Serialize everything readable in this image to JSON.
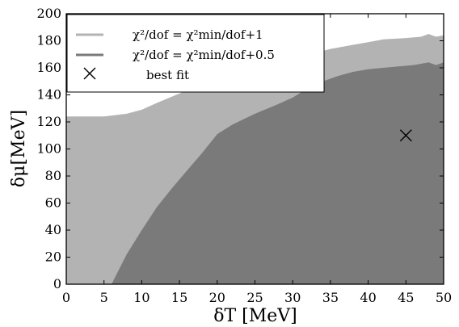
{
  "chart_data": {
    "type": "area",
    "xlabel": "δT [MeV]",
    "ylabel": "δμ[MeV]",
    "xlim": [
      0,
      50
    ],
    "ylim": [
      0,
      200
    ],
    "xticks": [
      0,
      5,
      10,
      15,
      20,
      25,
      30,
      35,
      40,
      45,
      50
    ],
    "yticks": [
      0,
      20,
      40,
      60,
      80,
      100,
      120,
      140,
      160,
      180,
      200
    ],
    "grid": false,
    "legend_position": "top-left",
    "series": [
      {
        "name": "χ²/dof = χ²min/dof+1",
        "color": "#b3b3b3",
        "boundary": {
          "x": [
            0,
            5,
            8,
            10,
            12,
            15,
            18,
            20,
            22,
            25,
            28,
            30,
            33,
            35,
            38,
            40,
            42,
            45,
            47,
            48,
            49,
            50
          ],
          "y": [
            124,
            124,
            126,
            129,
            134,
            141,
            148,
            152,
            156,
            160,
            164,
            167,
            171,
            174,
            177,
            179,
            181,
            182,
            183,
            185,
            183,
            184
          ]
        }
      },
      {
        "name": "χ²/dof = χ²min/dof+0.5",
        "color": "#7a7a7a",
        "boundary": {
          "x": [
            6,
            8,
            10,
            12,
            14,
            16,
            18,
            20,
            22,
            25,
            28,
            30,
            32,
            34,
            36,
            38,
            40,
            42,
            44,
            46,
            47,
            48,
            49,
            50
          ],
          "y": [
            0,
            22,
            40,
            57,
            71,
            84,
            97,
            111,
            118,
            126,
            133,
            138,
            145,
            150,
            154,
            157,
            159,
            160,
            161,
            162,
            163,
            164,
            162,
            164
          ]
        }
      }
    ],
    "best_fit": {
      "name": "best fit",
      "x": 45,
      "y": 110,
      "marker": "x"
    }
  },
  "legend": {
    "series1_label": "χ²/dof = χ²min/dof+1",
    "series2_label": "χ²/dof = χ²min/dof+0.5",
    "best_fit_label": "best fit"
  }
}
